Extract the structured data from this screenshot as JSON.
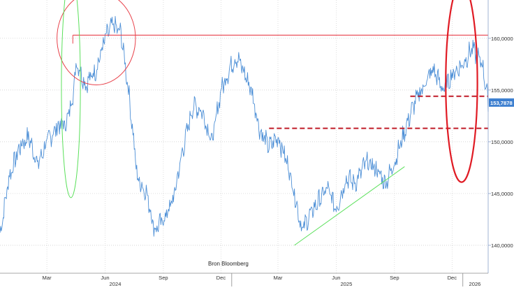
{
  "chart_data": {
    "type": "line",
    "source_note": "Bron Bloomberg",
    "x_month_labels": [
      "Mar",
      "Jun",
      "Sep",
      "Dec",
      "Mar",
      "Jun",
      "Sep",
      "Dec"
    ],
    "x_year_labels": [
      "2024",
      "2025",
      "2026"
    ],
    "y_tick_labels": [
      "140,0000",
      "145,0000",
      "150,0000",
      "155,0000",
      "160,0000"
    ],
    "y_ticks": [
      140,
      145,
      150,
      155,
      160
    ],
    "ylim": [
      137.3,
      163.7
    ],
    "xlim": [
      "2024-01-01",
      "2026-02-10"
    ],
    "last_value_label": "153,7878",
    "last_value": 153.79,
    "grid": true,
    "series": [
      {
        "color": "#4d8fd6",
        "x": [
          "2024-01-01",
          "2024-01-15",
          "2024-02-01",
          "2024-02-15",
          "2024-03-01",
          "2024-03-15",
          "2024-04-01",
          "2024-04-15",
          "2024-04-25",
          "2024-05-01",
          "2024-05-15",
          "2024-06-01",
          "2024-06-15",
          "2024-06-27",
          "2024-07-10",
          "2024-07-22",
          "2024-08-05",
          "2024-08-20",
          "2024-09-01",
          "2024-09-16",
          "2024-10-01",
          "2024-10-15",
          "2024-11-01",
          "2024-11-15",
          "2024-12-01",
          "2024-12-15",
          "2025-01-01",
          "2025-01-10",
          "2025-02-01",
          "2025-02-15",
          "2025-03-01",
          "2025-03-15",
          "2025-04-01",
          "2025-04-10",
          "2025-04-22",
          "2025-05-01",
          "2025-05-15",
          "2025-06-01",
          "2025-06-15",
          "2025-07-01",
          "2025-07-15",
          "2025-08-01",
          "2025-08-15",
          "2025-09-01",
          "2025-09-15",
          "2025-10-01",
          "2025-10-15",
          "2025-11-01",
          "2025-11-15",
          "2025-12-01",
          "2025-12-15",
          "2026-01-01",
          "2026-01-15",
          "2026-02-01",
          "2026-02-10"
        ],
        "values": [
          141.0,
          146.5,
          149.5,
          150.5,
          147.8,
          150.0,
          151.5,
          151.8,
          154.5,
          157.8,
          155.5,
          157.0,
          160.0,
          161.3,
          160.5,
          155.0,
          146.5,
          145.0,
          141.5,
          142.5,
          144.5,
          149.0,
          153.5,
          153.0,
          150.0,
          155.0,
          157.5,
          158.2,
          155.0,
          151.0,
          149.5,
          150.5,
          147.5,
          145.0,
          141.5,
          142.5,
          144.0,
          145.5,
          143.5,
          146.5,
          146.0,
          148.0,
          147.5,
          146.0,
          148.0,
          151.0,
          153.5,
          155.5,
          157.0,
          155.0,
          156.5,
          157.5,
          159.0,
          157.5,
          153.8
        ]
      }
    ],
    "annotations": [
      {
        "type": "hline",
        "color": "#e8414a",
        "style": "solid",
        "y": 160.3,
        "x_start": "2024-04-25"
      },
      {
        "type": "hline",
        "color": "#c01c28",
        "style": "dashed",
        "y": 151.3,
        "x_start": "2025-03-01"
      },
      {
        "type": "hline",
        "color": "#c01c28",
        "style": "dashed",
        "y": 154.4,
        "x_start": "2025-10-10"
      },
      {
        "type": "trendline",
        "color": "#5be05b",
        "from": {
          "x": "2025-04-10",
          "y": 140.0
        },
        "to": {
          "x": "2025-10-01",
          "y": 147.6
        }
      },
      {
        "type": "ellipse",
        "color": "#e8414a",
        "stroke": "thin",
        "cx": "2024-06-01",
        "cy": 160.0,
        "rx_days": 62,
        "ry": 4.5
      },
      {
        "type": "ellipse",
        "color": "#5be05b",
        "stroke": "thin",
        "cx": "2024-04-22",
        "cy": 155.4,
        "rx_days": 15,
        "ry": 10.8
      },
      {
        "type": "ellipse",
        "color": "#e01b24",
        "stroke": "thick",
        "cx": "2025-12-30",
        "cy": 155.7,
        "rx_days": 25,
        "ry": 9.6
      }
    ]
  }
}
